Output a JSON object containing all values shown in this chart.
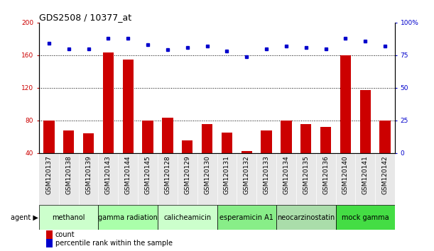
{
  "title": "GDS2508 / 10377_at",
  "samples": [
    "GSM120137",
    "GSM120138",
    "GSM120139",
    "GSM120143",
    "GSM120144",
    "GSM120145",
    "GSM120128",
    "GSM120129",
    "GSM120130",
    "GSM120131",
    "GSM120132",
    "GSM120133",
    "GSM120134",
    "GSM120135",
    "GSM120136",
    "GSM120140",
    "GSM120141",
    "GSM120142"
  ],
  "counts": [
    80,
    68,
    64,
    163,
    155,
    80,
    83,
    55,
    75,
    65,
    42,
    68,
    80,
    75,
    72,
    160,
    117,
    80
  ],
  "percentiles": [
    84,
    80,
    80,
    88,
    88,
    83,
    79,
    81,
    82,
    78,
    74,
    80,
    82,
    81,
    80,
    88,
    86,
    82
  ],
  "agents": [
    {
      "label": "methanol",
      "start": 0,
      "end": 3,
      "color": "#ccffcc"
    },
    {
      "label": "gamma radiation",
      "start": 3,
      "end": 6,
      "color": "#aaffaa"
    },
    {
      "label": "calicheamicin",
      "start": 6,
      "end": 9,
      "color": "#ccffcc"
    },
    {
      "label": "esperamicin A1",
      "start": 9,
      "end": 12,
      "color": "#88ee88"
    },
    {
      "label": "neocarzinostatin",
      "start": 12,
      "end": 15,
      "color": "#aaddaa"
    },
    {
      "label": "mock gamma",
      "start": 15,
      "end": 18,
      "color": "#44dd44"
    }
  ],
  "ylim_left": [
    40,
    200
  ],
  "ylim_right": [
    0,
    100
  ],
  "yticks_left": [
    40,
    80,
    120,
    160,
    200
  ],
  "yticks_right": [
    0,
    25,
    50,
    75,
    100
  ],
  "ytick_labels_right": [
    "0",
    "25",
    "50",
    "75",
    "100%"
  ],
  "bar_color": "#cc0000",
  "dot_color": "#0000cc",
  "grid_lines": [
    80,
    120,
    160
  ],
  "legend_count_color": "#cc0000",
  "legend_dot_color": "#0000cc",
  "title_fontsize": 9,
  "tick_fontsize": 6.5,
  "agent_fontsize": 7,
  "legend_fontsize": 7,
  "bar_width": 0.55
}
